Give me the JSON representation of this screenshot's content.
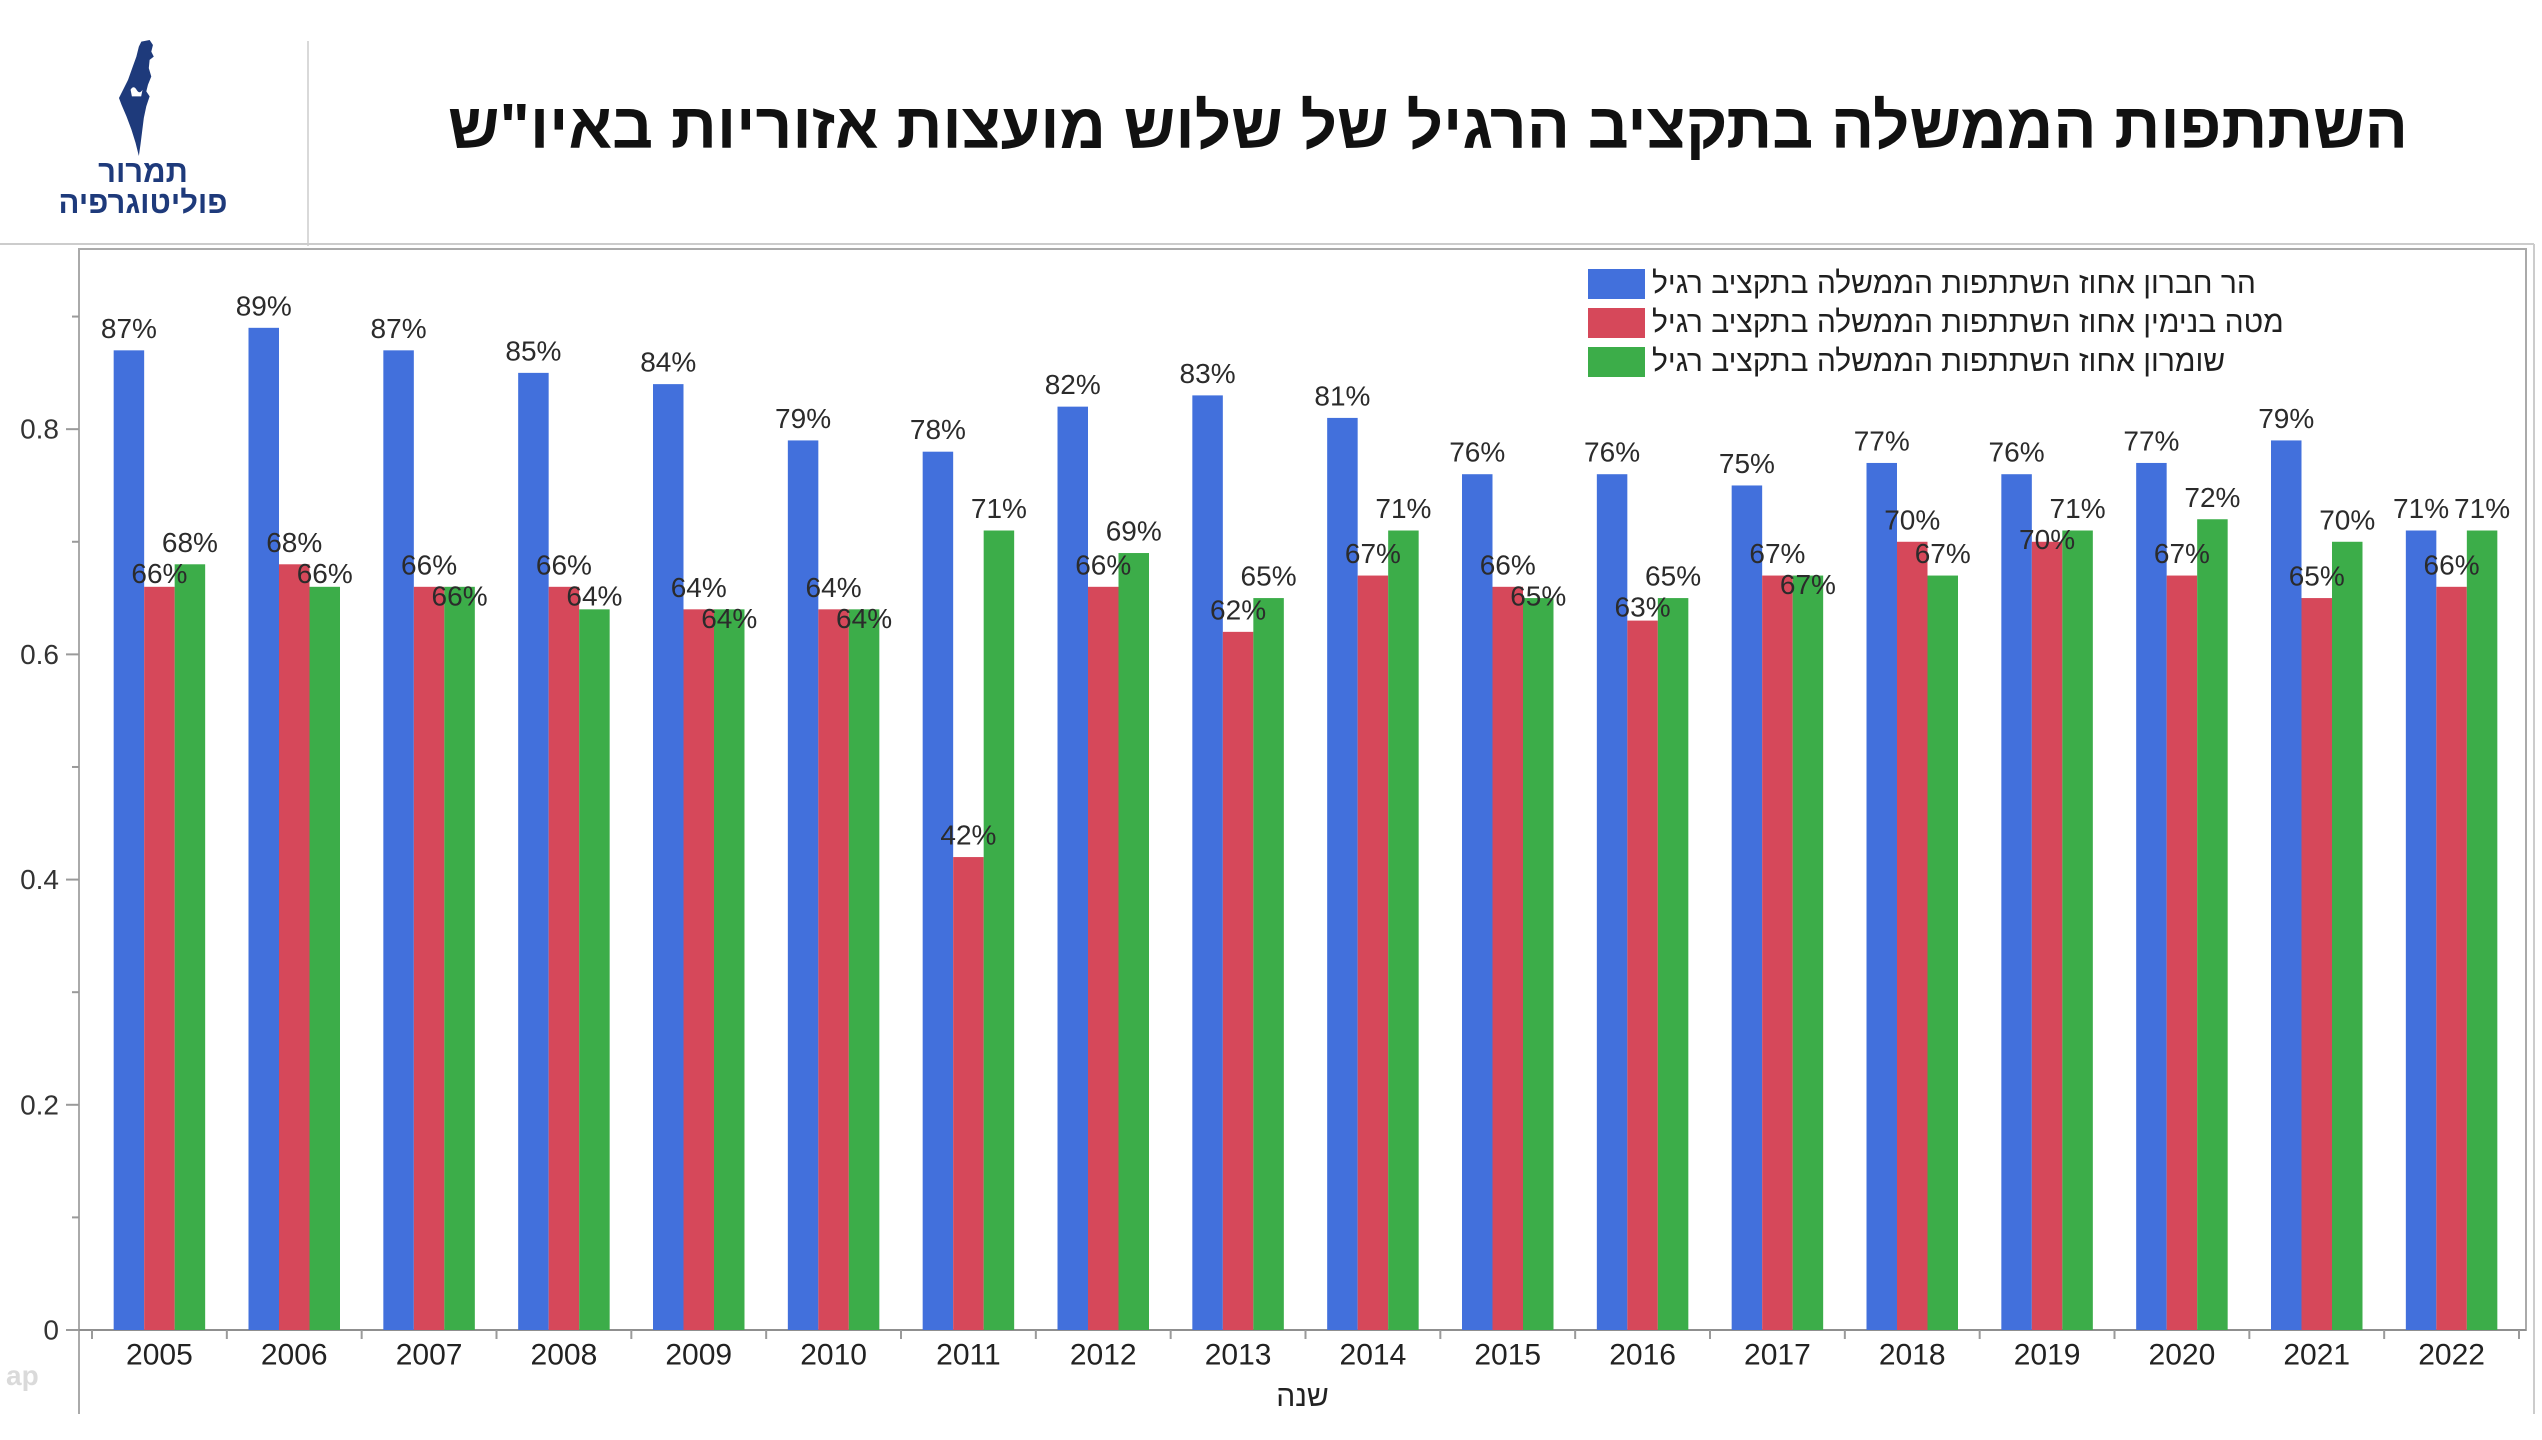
{
  "header": {
    "logo": {
      "icon": "israel-map-icon",
      "line1": "תמרור",
      "line2": "פוליטוגרפיה",
      "color": "#1e3a7b"
    }
  },
  "faint_text": "ap",
  "chart_data": {
    "type": "bar",
    "title": "השתתפות הממשלה בתקציב הרגיל של שלוש מועצות אזוריות באיו\"ש",
    "xlabel": "שנה",
    "ylabel": "",
    "categories": [
      "2005",
      "2006",
      "2007",
      "2008",
      "2009",
      "2010",
      "2011",
      "2012",
      "2013",
      "2014",
      "2015",
      "2016",
      "2017",
      "2018",
      "2019",
      "2020",
      "2021",
      "2022"
    ],
    "yticks": [
      "0",
      "0.2",
      "0.4",
      "0.6",
      "0.8"
    ],
    "ylim": [
      0,
      0.96
    ],
    "grid": false,
    "legend_position": "top-right",
    "series": [
      {
        "name": "הר חברון אחוז השתתפות הממשלה בתקציב רגיל",
        "color": "#4270dc",
        "values": [
          0.87,
          0.89,
          0.87,
          0.85,
          0.84,
          0.79,
          0.78,
          0.82,
          0.83,
          0.81,
          0.76,
          0.76,
          0.75,
          0.77,
          0.76,
          0.77,
          0.79,
          0.71
        ],
        "labels": [
          "87%",
          "89%",
          "87%",
          "85%",
          "84%",
          "79%",
          "78%",
          "82%",
          "83%",
          "81%",
          "76%",
          "76%",
          "75%",
          "77%",
          "76%",
          "77%",
          "79%",
          "71%"
        ]
      },
      {
        "name": "מטה בנימין אחוז השתתפות הממשלה בתקציב רגיל",
        "color": "#d6485a",
        "values": [
          0.66,
          0.68,
          0.66,
          0.66,
          0.64,
          0.64,
          0.42,
          0.66,
          0.62,
          0.67,
          0.66,
          0.63,
          0.67,
          0.7,
          0.7,
          0.67,
          0.65,
          0.66
        ],
        "labels": [
          "66%",
          "68%",
          "66%",
          "66%",
          "64%",
          "64%",
          "42%",
          "66%",
          "62%",
          "67%",
          "66%",
          "63%",
          "67%",
          "70%",
          "70%",
          "67%",
          "65%",
          "66%"
        ]
      },
      {
        "name": "שומרון אחוז השתתפות הממשלה בתקציב רגיל",
        "color": "#3cad49",
        "values": [
          0.68,
          0.66,
          0.66,
          0.64,
          0.64,
          0.64,
          0.71,
          0.69,
          0.65,
          0.71,
          0.65,
          0.65,
          0.67,
          0.67,
          0.71,
          0.72,
          0.7,
          0.71
        ],
        "labels": [
          "68%",
          "66%",
          "66%",
          "64%",
          "64%",
          "64%",
          "71%",
          "69%",
          "65%",
          "71%",
          "65%",
          "65%",
          "67%",
          "67%",
          "71%",
          "72%",
          "70%",
          "71%"
        ]
      }
    ]
  }
}
